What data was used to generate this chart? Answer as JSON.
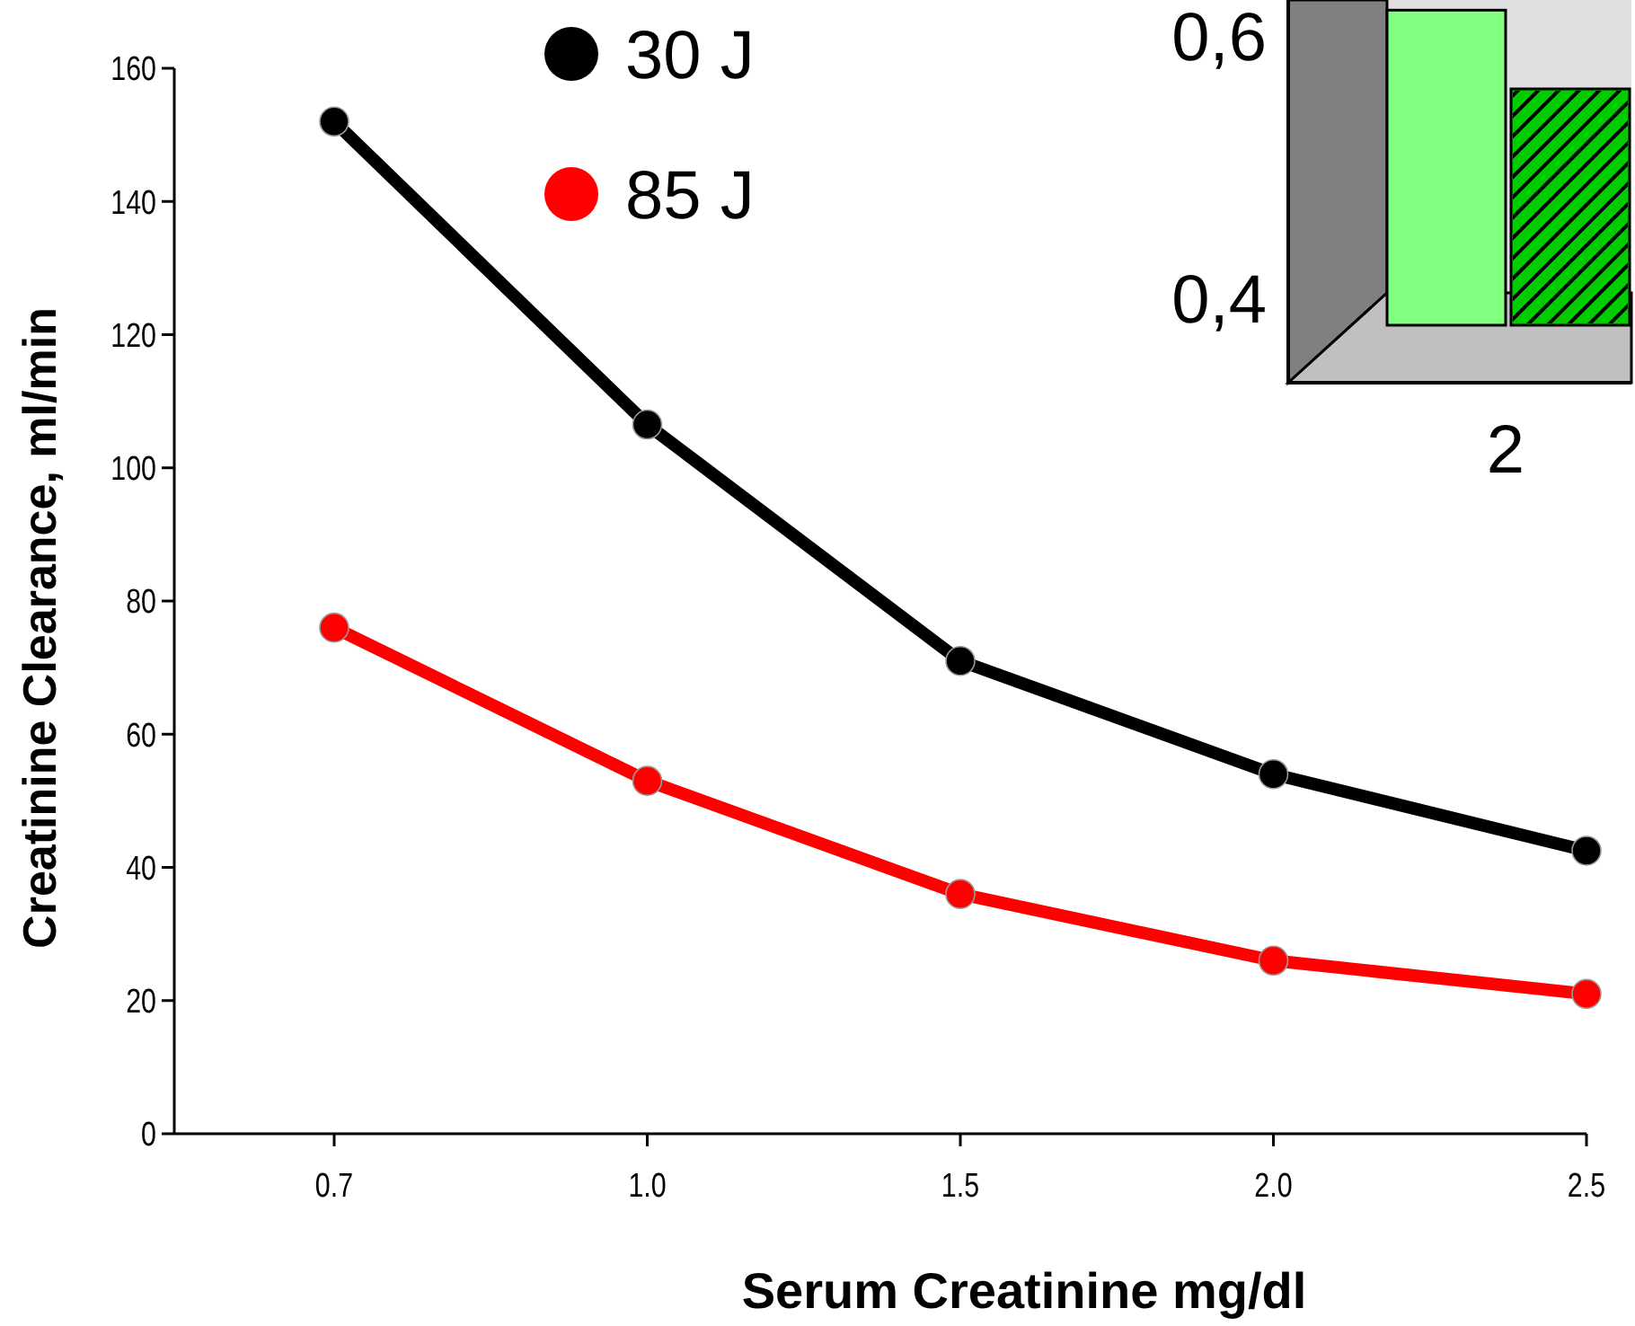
{
  "chart_data": [
    {
      "type": "line",
      "xlabel": "Serum Creatinine mg/dl",
      "ylabel": "Creatinine Clearance, ml/min",
      "categories": [
        "0.7",
        "1.0",
        "1.5",
        "2.0",
        "2.5"
      ],
      "series": [
        {
          "name": "30 J",
          "color": "#000000",
          "values": [
            152,
            106.5,
            71,
            54,
            42.5
          ]
        },
        {
          "name": "85 J",
          "color": "#ff0000",
          "values": [
            76,
            53,
            36,
            26,
            21
          ]
        }
      ],
      "ylim": [
        0,
        160
      ],
      "yticks": [
        0,
        20,
        40,
        60,
        80,
        100,
        120,
        140,
        160
      ],
      "marker": "circle",
      "legend": "top",
      "grid": false
    },
    {
      "type": "bar",
      "categories": [
        "2"
      ],
      "series": [
        {
          "color": "#80ff80",
          "values": [
            0.62
          ]
        },
        {
          "color": "#00cc00",
          "values": [
            0.56
          ]
        }
      ],
      "ylim": [
        0.38,
        0.625
      ],
      "yticks": [
        {
          "value": 0.4,
          "label": "0,4"
        },
        {
          "value": 0.6,
          "label": "0,6"
        }
      ]
    }
  ]
}
